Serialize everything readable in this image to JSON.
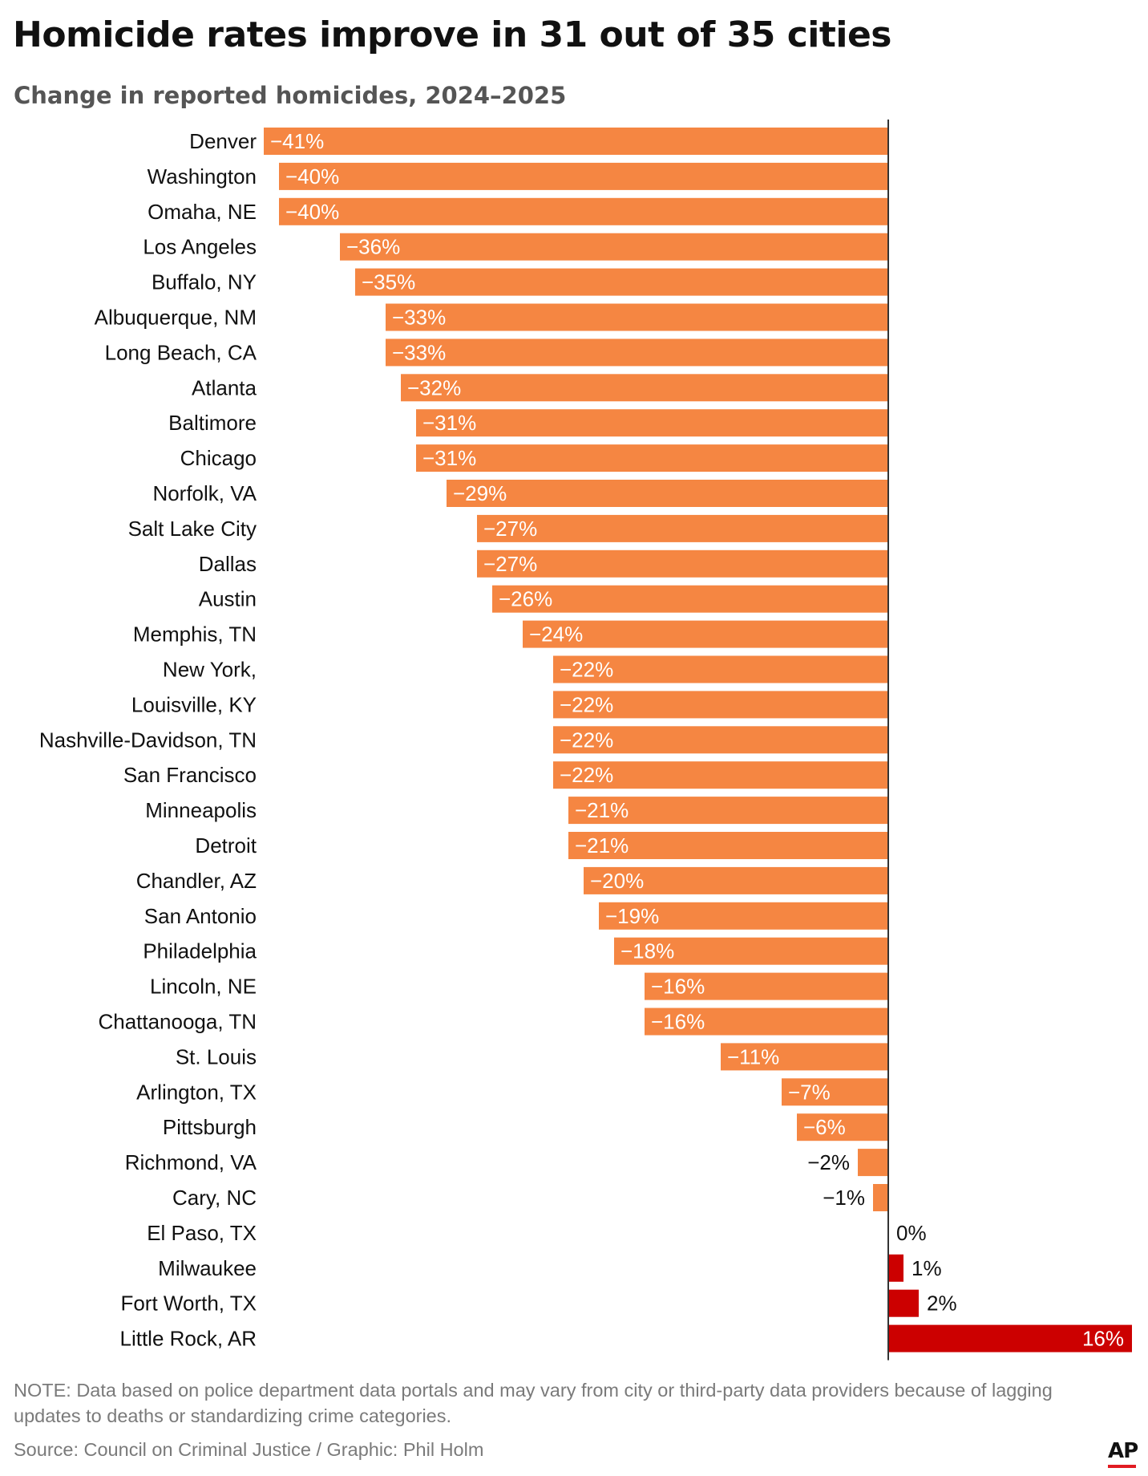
{
  "chart_data": {
    "type": "bar",
    "orientation": "horizontal",
    "title": "Homicide rates improve in 31 out of 35 cities",
    "subtitle": "Change in reported homicides, 2024–2025",
    "categories": [
      "Denver",
      "Washington",
      "Omaha, NE",
      "Los Angeles",
      "Buffalo, NY",
      "Albuquerque, NM",
      "Long Beach, CA",
      "Atlanta",
      "Baltimore",
      "Chicago",
      "Norfolk, VA",
      "Salt Lake City",
      "Dallas",
      "Austin",
      "Memphis, TN",
      "New York,",
      "Louisville, KY",
      "Nashville-Davidson, TN",
      "San Francisco",
      "Minneapolis",
      "Detroit",
      "Chandler, AZ",
      "San Antonio",
      "Philadelphia",
      "Lincoln, NE",
      "Chattanooga, TN",
      "St. Louis",
      "Arlington, TX",
      "Pittsburgh",
      "Richmond, VA",
      "Cary, NC",
      "El Paso, TX",
      "Milwaukee",
      "Fort Worth, TX",
      "Little Rock, AR"
    ],
    "values": [
      -41,
      -40,
      -40,
      -36,
      -35,
      -33,
      -33,
      -32,
      -31,
      -31,
      -29,
      -27,
      -27,
      -26,
      -24,
      -22,
      -22,
      -22,
      -22,
      -21,
      -21,
      -20,
      -19,
      -18,
      -16,
      -16,
      -11,
      -7,
      -6,
      -2,
      -1,
      0,
      1,
      2,
      16
    ],
    "value_labels": [
      "−41%",
      "−40%",
      "−40%",
      "−36%",
      "−35%",
      "−33%",
      "−33%",
      "−32%",
      "−31%",
      "−31%",
      "−29%",
      "−27%",
      "−27%",
      "−26%",
      "−24%",
      "−22%",
      "−22%",
      "−22%",
      "−22%",
      "−21%",
      "−21%",
      "−20%",
      "−19%",
      "−18%",
      "−16%",
      "−16%",
      "−11%",
      "−7%",
      "−6%",
      "−2%",
      "−1%",
      "0%",
      "1%",
      "2%",
      "16%"
    ],
    "unit": "%",
    "xlim": [
      -41,
      16
    ],
    "grid": false,
    "colors": {
      "decrease": "#f58642",
      "increase": "#cc0000",
      "inside_label": "#ffffff",
      "outside_label": "#111111",
      "axis": "#333333"
    }
  },
  "footer": {
    "note": "NOTE: Data based on police department data portals and may vary from city or third-party data providers because of lagging updates to deaths or standardizing crime categories.",
    "source": "Source: Council on Criminal Justice / Graphic: Phil Holm",
    "logo_text": "AP",
    "logo_color": "#e11b22"
  }
}
